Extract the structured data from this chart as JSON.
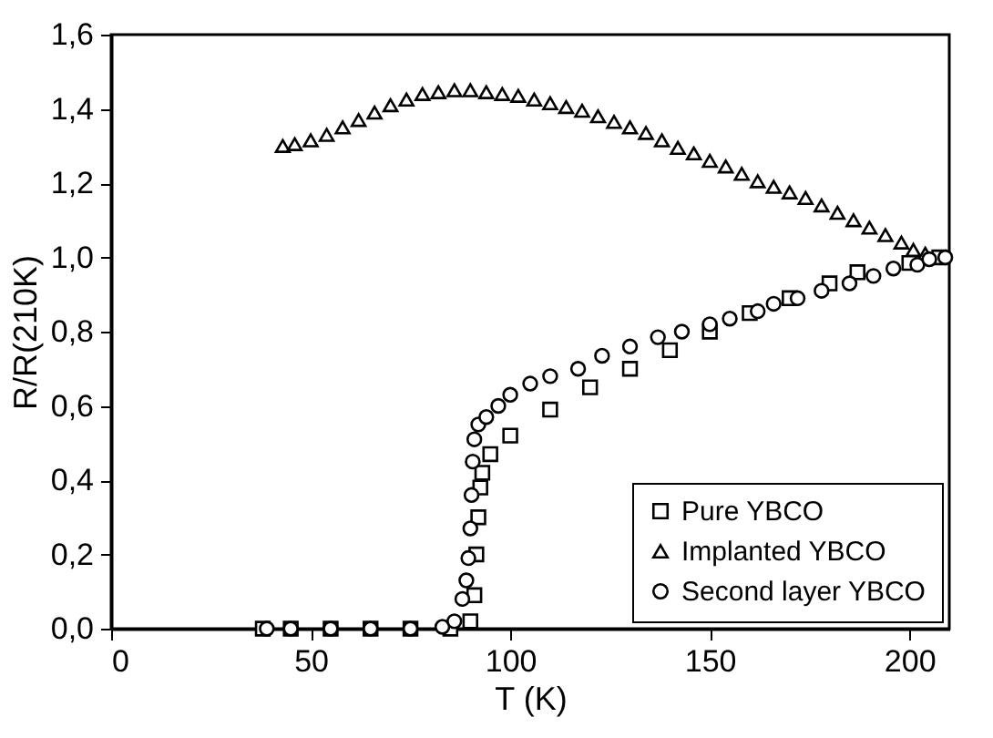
{
  "chart_data": {
    "type": "scatter",
    "xlabel": "T (K)",
    "ylabel": "R/R(210K)",
    "xlim": [
      0,
      210
    ],
    "xticks": [
      0,
      50,
      100,
      150,
      200
    ],
    "ylim": [
      0,
      1.6
    ],
    "yticks": [
      {
        "value": 0,
        "label": "0,0"
      },
      {
        "value": 0.2,
        "label": "0,2"
      },
      {
        "value": 0.4,
        "label": "0,4"
      },
      {
        "value": 0.6,
        "label": "0,6"
      },
      {
        "value": 0.8,
        "label": "0,8"
      },
      {
        "value": 1.0,
        "label": "1,0"
      },
      {
        "value": 1.2,
        "label": "1,2"
      },
      {
        "value": 1.4,
        "label": "1,4"
      },
      {
        "value": 1.6,
        "label": "1,6"
      }
    ],
    "grid": false,
    "legend": "bottom right",
    "series": [
      {
        "name": "Pure YBCO",
        "color": "#000000",
        "marker": "square",
        "x": [
          38,
          45,
          55,
          65,
          75,
          85,
          90,
          91,
          91.5,
          92,
          92.5,
          93,
          95,
          100,
          110,
          120,
          130,
          140,
          150,
          160,
          170,
          180,
          187,
          200,
          207.5
        ],
        "values": [
          0,
          0,
          0,
          0,
          0,
          0,
          0.02,
          0.09,
          0.2,
          0.3,
          0.38,
          0.42,
          0.47,
          0.52,
          0.59,
          0.65,
          0.7,
          0.75,
          0.8,
          0.85,
          0.89,
          0.93,
          0.96,
          0.985,
          1.0
        ]
      },
      {
        "name": "Implanted YBCO",
        "color": "#000000",
        "marker": "triangle",
        "x": [
          43,
          46,
          50,
          54,
          58,
          62,
          66,
          70,
          74,
          78,
          82,
          86,
          90,
          94,
          98,
          102,
          106,
          110,
          114,
          118,
          122,
          126,
          130,
          134,
          138,
          142,
          146,
          150,
          154,
          158,
          162,
          166,
          170,
          174,
          178,
          182,
          186,
          190,
          194,
          198,
          201,
          204
        ],
        "values": [
          1.3,
          1.305,
          1.315,
          1.33,
          1.35,
          1.37,
          1.39,
          1.41,
          1.425,
          1.44,
          1.445,
          1.45,
          1.45,
          1.445,
          1.44,
          1.435,
          1.425,
          1.415,
          1.405,
          1.395,
          1.38,
          1.365,
          1.35,
          1.335,
          1.315,
          1.295,
          1.28,
          1.26,
          1.245,
          1.225,
          1.205,
          1.19,
          1.175,
          1.16,
          1.14,
          1.12,
          1.1,
          1.08,
          1.06,
          1.04,
          1.02,
          1.01
        ]
      },
      {
        "name": "Second layer YBCO",
        "color": "#000000",
        "marker": "circle",
        "x": [
          39,
          45,
          55,
          65,
          75,
          83,
          86,
          88,
          89,
          89.5,
          90,
          90.3,
          90.6,
          91,
          92,
          94,
          97,
          100,
          105,
          110,
          117,
          123,
          130,
          137,
          143,
          150,
          155,
          162,
          166,
          172,
          178,
          185,
          191,
          196,
          202,
          205,
          209
        ],
        "values": [
          0,
          0,
          0,
          0,
          0,
          0.005,
          0.02,
          0.08,
          0.13,
          0.19,
          0.27,
          0.36,
          0.45,
          0.51,
          0.55,
          0.57,
          0.6,
          0.63,
          0.66,
          0.68,
          0.7,
          0.735,
          0.76,
          0.785,
          0.8,
          0.82,
          0.835,
          0.855,
          0.875,
          0.89,
          0.91,
          0.93,
          0.95,
          0.97,
          0.98,
          0.995,
          1.0
        ]
      }
    ]
  }
}
